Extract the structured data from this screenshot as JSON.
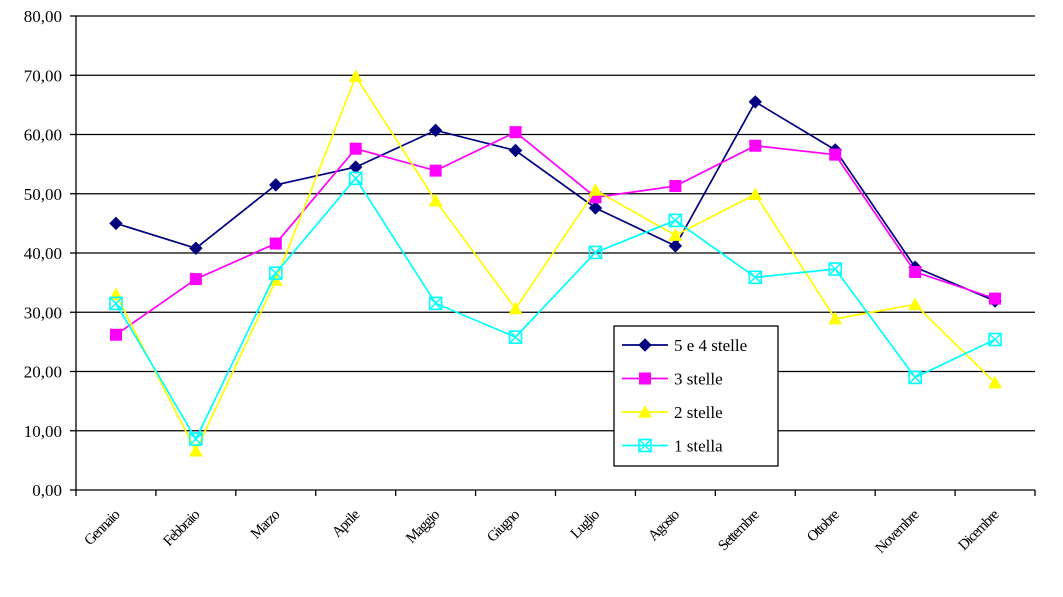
{
  "chart_data": {
    "type": "line",
    "title": "",
    "xlabel": "",
    "ylabel": "",
    "ylim": [
      0,
      80
    ],
    "yticks": [
      "0,00",
      "10,00",
      "20,00",
      "30,00",
      "40,00",
      "50,00",
      "60,00",
      "70,00",
      "80,00"
    ],
    "ytick_values": [
      0,
      10,
      20,
      30,
      40,
      50,
      60,
      70,
      80
    ],
    "grid": "horizontal",
    "legend_position": "lower-right inside plot",
    "categories": [
      "Gennaio",
      "Febbraio",
      "Marzo",
      "Aprile",
      "Maggio",
      "Giugno",
      "Luglio",
      "Agosto",
      "Settembre",
      "Ottobre",
      "Novembre",
      "Dicembre"
    ],
    "series": [
      {
        "name": "5 e 4 stelle",
        "color": "#000080",
        "marker": "diamond",
        "values": [
          45.0,
          40.8,
          51.5,
          54.5,
          60.7,
          57.3,
          47.6,
          41.2,
          65.5,
          57.4,
          37.6,
          31.9
        ]
      },
      {
        "name": "3 stelle",
        "color": "#FF00FF",
        "marker": "square",
        "values": [
          26.2,
          35.6,
          41.6,
          57.6,
          53.9,
          60.4,
          49.4,
          51.3,
          58.1,
          56.6,
          36.8,
          32.3
        ]
      },
      {
        "name": "2 stelle",
        "color": "#FFFF00",
        "marker": "triangle",
        "values": [
          33.0,
          6.6,
          35.4,
          69.8,
          48.8,
          30.6,
          50.6,
          43.0,
          49.9,
          28.9,
          31.3,
          18.1
        ]
      },
      {
        "name": "1 stella",
        "color": "#00FFFF",
        "marker": "boxed-x",
        "values": [
          31.5,
          8.6,
          36.6,
          52.6,
          31.5,
          25.8,
          40.1,
          45.5,
          35.9,
          37.3,
          19.0,
          25.4
        ]
      }
    ]
  }
}
